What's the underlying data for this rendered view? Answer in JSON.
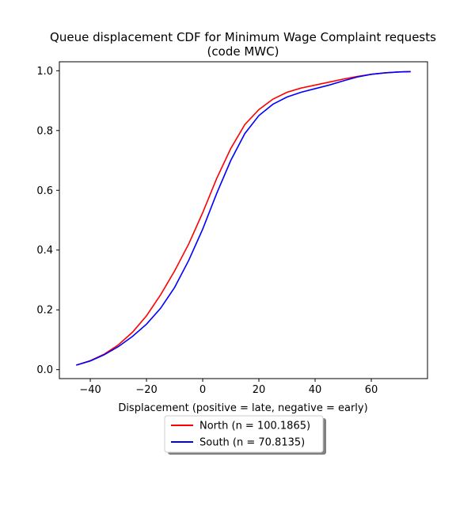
{
  "chart_data": {
    "type": "line",
    "title_line1": "Queue displacement CDF for Minimum Wage Complaint  requests",
    "title_line2": "(code MWC)",
    "xlabel": "Displacement (positive = late, negative = early)",
    "ylabel": "",
    "xlim": [
      -51,
      80
    ],
    "ylim": [
      -0.03,
      1.03
    ],
    "x_ticks": [
      -40,
      -20,
      0,
      20,
      40,
      60
    ],
    "y_ticks": [
      0.0,
      0.2,
      0.4,
      0.6,
      0.8,
      1.0
    ],
    "x_tick_labels": [
      "−40",
      "−20",
      "0",
      "20",
      "40",
      "60"
    ],
    "y_tick_labels": [
      "0.0",
      "0.2",
      "0.4",
      "0.6",
      "0.8",
      "1.0"
    ],
    "grid": false,
    "legend_position": "below-center",
    "series": [
      {
        "name": "North (n = 100.1865)",
        "color": "#ff0000",
        "x": [
          -45,
          -40,
          -35,
          -30,
          -25,
          -20,
          -15,
          -10,
          -5,
          0,
          5,
          10,
          15,
          20,
          25,
          30,
          35,
          40,
          45,
          50,
          55,
          60,
          65,
          70,
          74
        ],
        "y": [
          0.015,
          0.03,
          0.052,
          0.083,
          0.125,
          0.18,
          0.25,
          0.33,
          0.42,
          0.525,
          0.64,
          0.74,
          0.82,
          0.87,
          0.905,
          0.928,
          0.942,
          0.952,
          0.962,
          0.972,
          0.981,
          0.988,
          0.993,
          0.996,
          0.997
        ]
      },
      {
        "name": "South (n = 70.8135)",
        "color": "#0000ff",
        "x": [
          -45,
          -40,
          -35,
          -30,
          -25,
          -20,
          -15,
          -10,
          -5,
          0,
          5,
          10,
          15,
          20,
          25,
          30,
          35,
          40,
          45,
          50,
          55,
          60,
          65,
          70,
          74
        ],
        "y": [
          0.015,
          0.029,
          0.05,
          0.077,
          0.111,
          0.152,
          0.205,
          0.275,
          0.365,
          0.47,
          0.59,
          0.7,
          0.79,
          0.85,
          0.888,
          0.912,
          0.928,
          0.94,
          0.952,
          0.966,
          0.979,
          0.988,
          0.993,
          0.996,
          0.997
        ]
      }
    ]
  }
}
